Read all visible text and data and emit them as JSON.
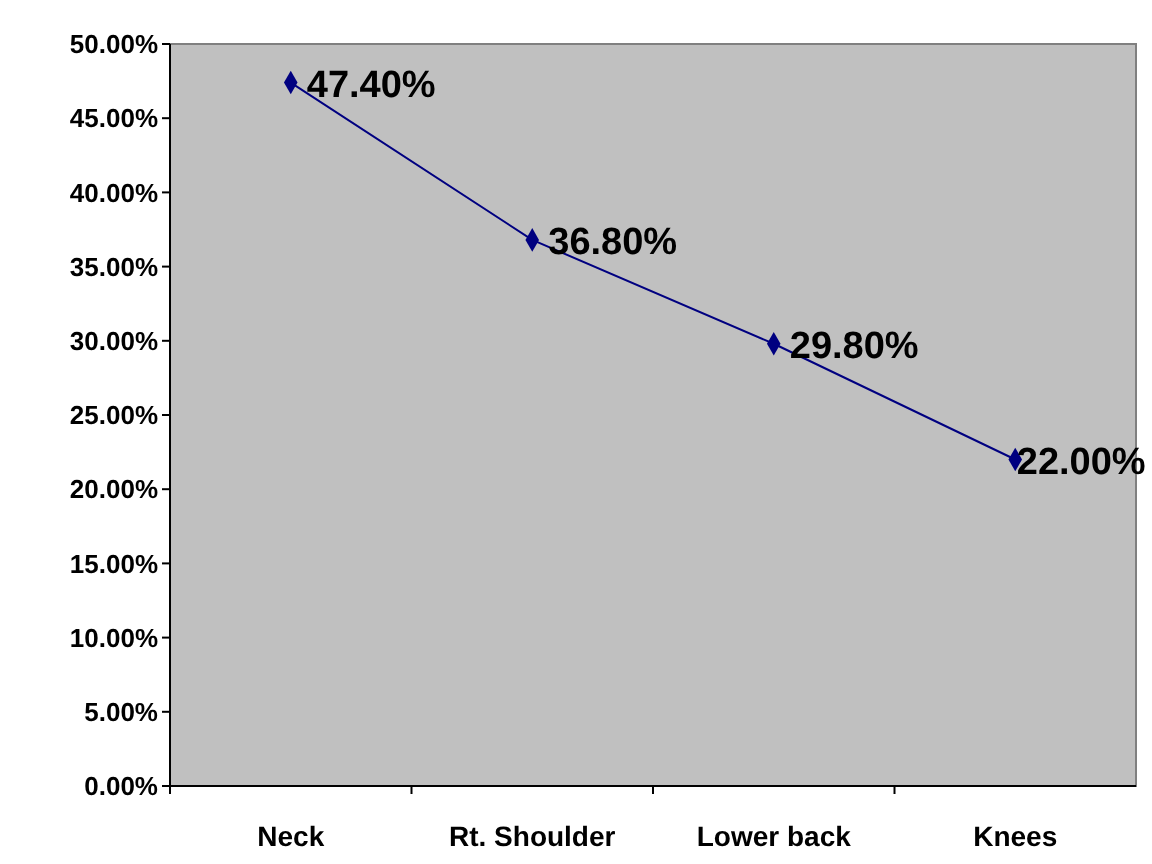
{
  "chart_data": {
    "type": "line",
    "categories": [
      "Neck",
      "Rt. Shoulder",
      "Lower back",
      "Knees"
    ],
    "series": [
      {
        "color": "#000080",
        "values": [
          47.4,
          36.8,
          29.8,
          22.0
        ],
        "value_labels": [
          "47.40%",
          "36.80%",
          "29.80%",
          "22.00%"
        ]
      }
    ],
    "ylim": [
      0,
      50
    ],
    "yticks": [
      {
        "value": 0,
        "label": "0.00%"
      },
      {
        "value": 5,
        "label": "5.00%"
      },
      {
        "value": 10,
        "label": "10.00%"
      },
      {
        "value": 15,
        "label": "15.00%"
      },
      {
        "value": 20,
        "label": "20.00%"
      },
      {
        "value": 25,
        "label": "25.00%"
      },
      {
        "value": 30,
        "label": "30.00%"
      },
      {
        "value": 35,
        "label": "35.00%"
      },
      {
        "value": 40,
        "label": "40.00%"
      },
      {
        "value": 45,
        "label": "45.00%"
      },
      {
        "value": 50,
        "label": "50.00%"
      }
    ],
    "grid": false,
    "marker": "diamond",
    "line_style": "solid"
  }
}
